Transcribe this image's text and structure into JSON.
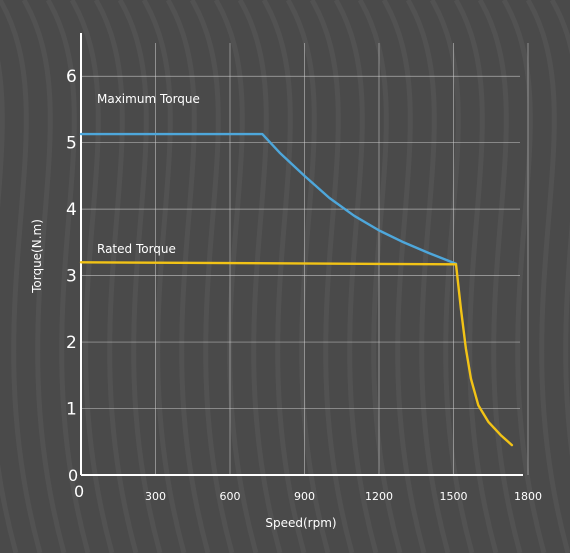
{
  "chart_data": {
    "type": "line",
    "xlabel": "Speed(rpm)",
    "ylabel": "Torque(N.m)",
    "xlim": [
      0,
      1800
    ],
    "ylim": [
      0,
      6.5
    ],
    "x_ticks": [
      "300",
      "600",
      "900",
      "1200",
      "1500",
      "1800"
    ],
    "x_tick_values": [
      300,
      600,
      900,
      1200,
      1500,
      1800
    ],
    "y_ticks": [
      "1",
      "2",
      "3",
      "4",
      "5",
      "6"
    ],
    "y_tick_values": [
      1,
      2,
      3,
      4,
      5,
      6
    ],
    "origin_labels": {
      "x": "0",
      "y": "0"
    },
    "grid": true,
    "series": [
      {
        "name": "Maximum Torque",
        "color": "#4ea7db",
        "points": [
          [
            0,
            5.13
          ],
          [
            730,
            5.13
          ],
          [
            800,
            4.85
          ],
          [
            900,
            4.5
          ],
          [
            1000,
            4.17
          ],
          [
            1100,
            3.9
          ],
          [
            1200,
            3.68
          ],
          [
            1300,
            3.5
          ],
          [
            1400,
            3.34
          ],
          [
            1510,
            3.18
          ]
        ]
      },
      {
        "name": "Rated Torque",
        "color": "#f2c316",
        "points": [
          [
            0,
            3.2
          ],
          [
            1510,
            3.17
          ],
          [
            1530,
            2.5
          ],
          [
            1550,
            1.9
          ],
          [
            1570,
            1.45
          ],
          [
            1600,
            1.05
          ],
          [
            1640,
            0.8
          ],
          [
            1690,
            0.6
          ],
          [
            1735,
            0.45
          ]
        ]
      }
    ]
  },
  "labels": {
    "max_torque": "Maximum Torque",
    "rated_torque": "Rated Torque"
  },
  "colors": {
    "background": "#4a4a4a",
    "grid": "#cfcfcf",
    "axis": "#ffffff"
  }
}
